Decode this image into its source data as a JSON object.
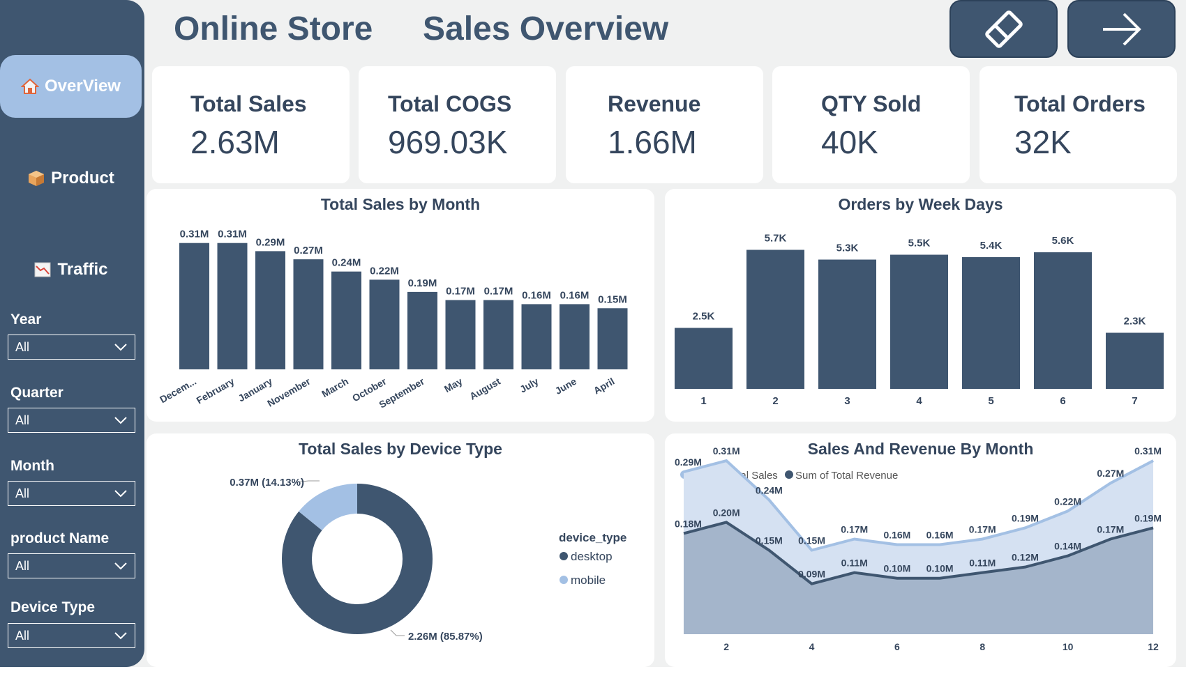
{
  "header": {
    "title_left": "Online Store",
    "title_right": "Sales Overview",
    "buttons": [
      {
        "name": "eraser-button",
        "icon": "eraser-icon"
      },
      {
        "name": "next-page-button",
        "icon": "arrow-right-icon"
      }
    ]
  },
  "sidebar": {
    "nav": [
      {
        "label": "OverView",
        "icon": "home-icon",
        "active": true
      },
      {
        "label": "Product",
        "icon": "box-icon",
        "active": false
      },
      {
        "label": "Traffic",
        "icon": "chart-icon",
        "active": false
      }
    ],
    "filters": [
      {
        "label": "Year",
        "value": "All"
      },
      {
        "label": "Quarter",
        "value": "All"
      },
      {
        "label": "Month",
        "value": "All"
      },
      {
        "label": "product Name",
        "value": "All"
      },
      {
        "label": "Device Type",
        "value": "All"
      }
    ]
  },
  "kpis": [
    {
      "label": "Total Sales",
      "value": "2.63M"
    },
    {
      "label": "Total COGS",
      "value": "969.03K"
    },
    {
      "label": "Revenue",
      "value": "1.66M"
    },
    {
      "label": "QTY Sold",
      "value": "40K"
    },
    {
      "label": "Total Orders",
      "value": "32K"
    }
  ],
  "colors": {
    "primary": "#3f5670",
    "light": "#a3c0e4",
    "text": "#35465d"
  },
  "chart_data": [
    {
      "type": "bar",
      "title": "Total Sales by Month",
      "categories": [
        "Decem...",
        "February",
        "January",
        "November",
        "March",
        "October",
        "September",
        "May",
        "August",
        "July",
        "June",
        "April"
      ],
      "values": [
        0.31,
        0.31,
        0.29,
        0.27,
        0.24,
        0.22,
        0.19,
        0.17,
        0.17,
        0.16,
        0.16,
        0.15
      ],
      "labels": [
        "0.31M",
        "0.31M",
        "0.29M",
        "0.27M",
        "0.24M",
        "0.22M",
        "0.19M",
        "0.17M",
        "0.17M",
        "0.16M",
        "0.16M",
        "0.15M"
      ],
      "ylim": [
        0,
        0.33
      ]
    },
    {
      "type": "bar",
      "title": "Orders by Week Days",
      "categories": [
        "1",
        "2",
        "3",
        "4",
        "5",
        "6",
        "7"
      ],
      "values": [
        2.5,
        5.7,
        5.3,
        5.5,
        5.4,
        5.6,
        2.3
      ],
      "labels": [
        "2.5K",
        "5.7K",
        "5.3K",
        "5.5K",
        "5.4K",
        "5.6K",
        "2.3K"
      ],
      "ylim": [
        0,
        6
      ]
    },
    {
      "type": "pie",
      "title": "Total Sales by Device Type",
      "legend_title": "device_type",
      "slices": [
        {
          "name": "desktop",
          "value": 85.87,
          "label": "2.26M (85.87%)"
        },
        {
          "name": "mobile",
          "value": 14.13,
          "label": "0.37M (14.13%)"
        }
      ]
    },
    {
      "type": "area",
      "title": "Sales And Revenue By Month",
      "x": [
        1,
        2,
        3,
        4,
        5,
        6,
        7,
        8,
        9,
        10,
        11,
        12
      ],
      "x_ticks": [
        "2",
        "4",
        "6",
        "8",
        "10",
        "12"
      ],
      "ylim": [
        0,
        0.33
      ],
      "series": [
        {
          "name": "Sum of Total Sales",
          "values": [
            0.29,
            0.31,
            0.24,
            0.15,
            0.17,
            0.16,
            0.16,
            0.17,
            0.19,
            0.22,
            0.27,
            0.31
          ],
          "labels": [
            "0.29M",
            "0.31M",
            "0.24M",
            "0.15M",
            "0.17M",
            "0.16M",
            "0.16M",
            "0.17M",
            "0.19M",
            "0.22M",
            "0.27M",
            "0.31M"
          ]
        },
        {
          "name": "Sum of Total Revenue",
          "values": [
            0.18,
            0.2,
            0.15,
            0.09,
            0.11,
            0.1,
            0.1,
            0.11,
            0.12,
            0.14,
            0.17,
            0.19
          ],
          "labels": [
            "0.18M",
            "0.20M",
            "0.15M",
            "0.09M",
            "0.11M",
            "0.10M",
            "0.10M",
            "0.11M",
            "0.12M",
            "0.14M",
            "0.17M",
            "0.19M"
          ]
        }
      ]
    }
  ]
}
